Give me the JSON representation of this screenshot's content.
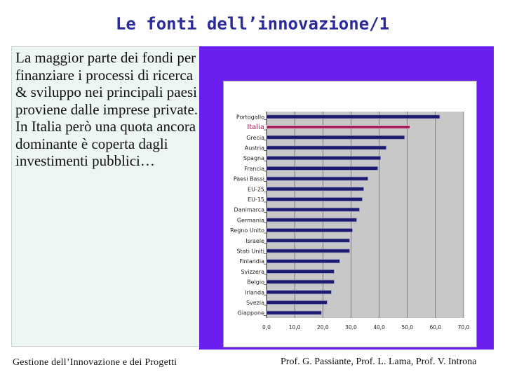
{
  "slide": {
    "title": "Le fonti dell’innovazione/1",
    "body": "La maggior parte dei fondi per finanziare i processi di ricerca & sviluppo nei principali paesi proviene dalle imprese private. In Italia però una quota ancora dominante è coperta dagli investimenti pubblici…",
    "footer_left": "Gestione dell’Innovazione e dei Progetti",
    "footer_right": "Prof. G. Passiante, Prof. L. Lama, Prof. V. Introna"
  },
  "colors": {
    "title": "#2a2a9a",
    "bar": "#1a1a6e",
    "bar_highlight": "#a0205a",
    "plot_area": "#c8c8c8",
    "frame": "#6a1ef0"
  },
  "chart_data": {
    "type": "bar",
    "orientation": "horizontal",
    "categories": [
      "Portogallo",
      "Italia",
      "Grecia",
      "Austria",
      "Spagna",
      "Francia",
      "Paesi Bassi",
      "EU-25",
      "EU-15",
      "Danimarca",
      "Germania",
      "Regno Unito",
      "Israele",
      "Stati Uniti",
      "Finlandia",
      "Svizzera",
      "Belgio",
      "Irlanda",
      "Svezia",
      "Giappone"
    ],
    "values": [
      61.5,
      51.0,
      49.0,
      42.5,
      40.5,
      39.5,
      36.0,
      34.5,
      34.0,
      33.0,
      32.0,
      30.5,
      29.5,
      29.5,
      26.0,
      24.0,
      24.0,
      23.0,
      21.5,
      19.5
    ],
    "highlight": "Italia",
    "xlim": [
      0,
      70
    ],
    "xticks": [
      "0,0",
      "10,0",
      "20,0",
      "30,0",
      "40,0",
      "50,0",
      "60,0",
      "70,0"
    ],
    "grid": true,
    "title": "",
    "xlabel": "",
    "ylabel": ""
  }
}
